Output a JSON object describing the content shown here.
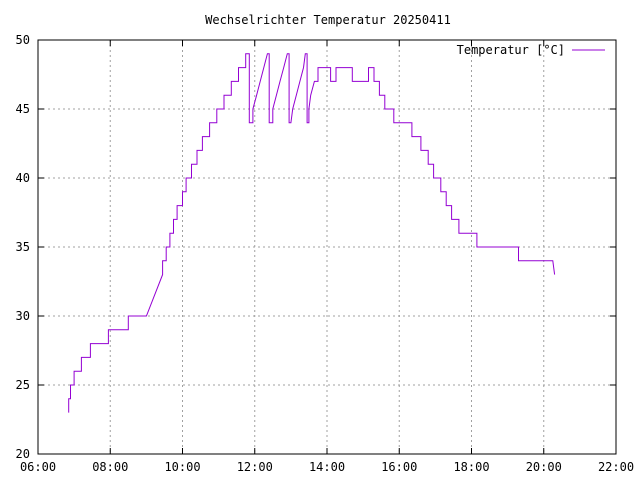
{
  "chart_data": {
    "type": "line",
    "title": "Wechselrichter Temperatur 20250411",
    "xlabel": "",
    "ylabel": "",
    "x_unit": "hours",
    "xlim": [
      6,
      22
    ],
    "ylim": [
      20,
      50
    ],
    "x_ticks": [
      "06:00",
      "08:00",
      "10:00",
      "12:00",
      "14:00",
      "16:00",
      "18:00",
      "20:00",
      "22:00"
    ],
    "y_ticks": [
      "20",
      "25",
      "30",
      "35",
      "40",
      "45",
      "50"
    ],
    "grid": true,
    "legend_position": "top-right",
    "line_color": "#9400d3",
    "series": [
      {
        "name": "Temperatur [°C]",
        "points": [
          [
            6.85,
            23
          ],
          [
            6.85,
            24
          ],
          [
            6.9,
            24
          ],
          [
            6.9,
            25
          ],
          [
            7.0,
            25
          ],
          [
            7.0,
            26
          ],
          [
            7.2,
            26
          ],
          [
            7.2,
            27
          ],
          [
            7.45,
            27
          ],
          [
            7.45,
            28
          ],
          [
            7.95,
            28
          ],
          [
            7.95,
            29
          ],
          [
            8.5,
            29
          ],
          [
            8.5,
            30
          ],
          [
            9.0,
            30
          ],
          [
            9.45,
            33
          ],
          [
            9.45,
            34
          ],
          [
            9.55,
            34
          ],
          [
            9.55,
            35
          ],
          [
            9.65,
            35
          ],
          [
            9.65,
            36
          ],
          [
            9.75,
            36
          ],
          [
            9.75,
            37
          ],
          [
            9.85,
            37
          ],
          [
            9.85,
            38
          ],
          [
            10.0,
            38
          ],
          [
            10.0,
            39
          ],
          [
            10.1,
            39
          ],
          [
            10.1,
            40
          ],
          [
            10.25,
            40
          ],
          [
            10.25,
            41
          ],
          [
            10.4,
            41
          ],
          [
            10.4,
            42
          ],
          [
            10.55,
            42
          ],
          [
            10.55,
            43
          ],
          [
            10.75,
            43
          ],
          [
            10.75,
            44
          ],
          [
            10.95,
            44
          ],
          [
            10.95,
            45
          ],
          [
            11.15,
            45
          ],
          [
            11.15,
            46
          ],
          [
            11.35,
            46
          ],
          [
            11.35,
            47
          ],
          [
            11.55,
            47
          ],
          [
            11.55,
            48
          ],
          [
            11.75,
            48
          ],
          [
            11.75,
            49
          ],
          [
            11.85,
            49
          ],
          [
            11.85,
            44
          ],
          [
            11.95,
            44
          ],
          [
            11.95,
            45
          ],
          [
            12.05,
            46
          ],
          [
            12.15,
            47
          ],
          [
            12.25,
            48
          ],
          [
            12.35,
            49
          ],
          [
            12.4,
            49
          ],
          [
            12.4,
            44
          ],
          [
            12.5,
            44
          ],
          [
            12.5,
            45
          ],
          [
            12.6,
            46
          ],
          [
            12.7,
            47
          ],
          [
            12.8,
            48
          ],
          [
            12.9,
            49
          ],
          [
            12.95,
            49
          ],
          [
            12.95,
            44
          ],
          [
            13.0,
            44
          ],
          [
            13.05,
            45
          ],
          [
            13.15,
            46
          ],
          [
            13.25,
            47
          ],
          [
            13.35,
            48
          ],
          [
            13.4,
            49
          ],
          [
            13.45,
            49
          ],
          [
            13.45,
            44
          ],
          [
            13.5,
            44
          ],
          [
            13.5,
            45
          ],
          [
            13.55,
            46
          ],
          [
            13.65,
            47
          ],
          [
            13.75,
            47
          ],
          [
            13.75,
            48
          ],
          [
            14.1,
            48
          ],
          [
            14.1,
            47
          ],
          [
            14.25,
            47
          ],
          [
            14.25,
            48
          ],
          [
            14.7,
            48
          ],
          [
            14.7,
            47
          ],
          [
            15.15,
            47
          ],
          [
            15.15,
            48
          ],
          [
            15.3,
            48
          ],
          [
            15.3,
            47
          ],
          [
            15.45,
            47
          ],
          [
            15.45,
            46
          ],
          [
            15.6,
            46
          ],
          [
            15.6,
            45
          ],
          [
            15.85,
            45
          ],
          [
            15.85,
            44
          ],
          [
            16.35,
            44
          ],
          [
            16.35,
            43
          ],
          [
            16.6,
            43
          ],
          [
            16.6,
            42
          ],
          [
            16.8,
            42
          ],
          [
            16.8,
            41
          ],
          [
            16.95,
            41
          ],
          [
            16.95,
            40
          ],
          [
            17.15,
            40
          ],
          [
            17.15,
            39
          ],
          [
            17.3,
            39
          ],
          [
            17.3,
            38
          ],
          [
            17.45,
            38
          ],
          [
            17.45,
            37
          ],
          [
            17.65,
            37
          ],
          [
            17.65,
            36
          ],
          [
            18.15,
            36
          ],
          [
            18.15,
            35
          ],
          [
            19.3,
            35
          ],
          [
            19.3,
            34
          ],
          [
            20.25,
            34
          ],
          [
            20.3,
            33
          ]
        ]
      }
    ]
  }
}
